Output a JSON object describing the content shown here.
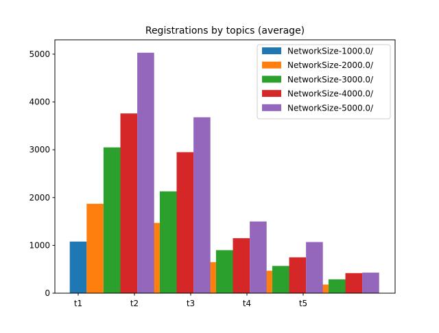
{
  "chart_data": {
    "type": "bar",
    "title": "Registrations by topics (average)",
    "xlabel": "",
    "ylabel": "",
    "categories": [
      "t1",
      "t2",
      "t3",
      "t4",
      "t5"
    ],
    "ylim": [
      0,
      5300
    ],
    "yticks": [
      0,
      1000,
      2000,
      3000,
      4000,
      5000
    ],
    "grid": false,
    "legend_position": "top-right",
    "series": [
      {
        "name": "NetworkSize-1000.0/",
        "color": "#1f77b4",
        "values": [
          1080,
          0,
          0,
          0,
          0
        ]
      },
      {
        "name": "NetworkSize-2000.0/",
        "color": "#ff7f0e",
        "values": [
          1870,
          1470,
          650,
          470,
          180
        ]
      },
      {
        "name": "NetworkSize-3000.0/",
        "color": "#2ca02c",
        "values": [
          3050,
          2130,
          900,
          570,
          290
        ]
      },
      {
        "name": "NetworkSize-4000.0/",
        "color": "#d62728",
        "values": [
          3760,
          2950,
          1150,
          750,
          420
        ]
      },
      {
        "name": "NetworkSize-5000.0/",
        "color": "#9467bd",
        "values": [
          5030,
          3680,
          1500,
          1070,
          430
        ]
      }
    ]
  }
}
